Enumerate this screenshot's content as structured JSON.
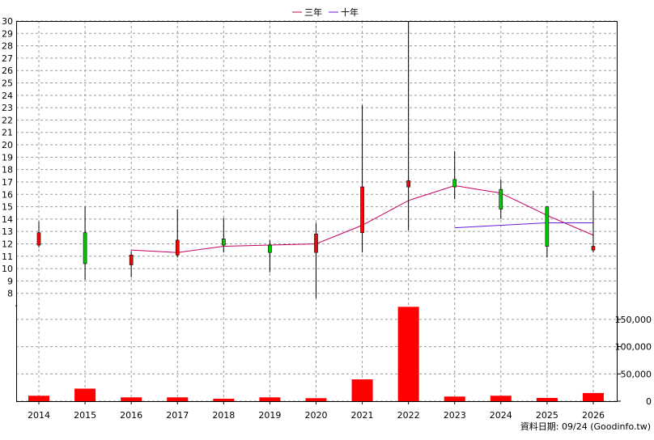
{
  "legend": {
    "items": [
      {
        "label": "三年",
        "color": "#c80064"
      },
      {
        "label": "十年",
        "color": "#6a1bd6"
      }
    ]
  },
  "footer": {
    "source_note": "資料日期: 09/24  (Goodinfo.tw)"
  },
  "chart_data": {
    "type": "candlestick+bar",
    "legend_position": "top-center",
    "grid": true,
    "years": [
      "2014",
      "2015",
      "2016",
      "2017",
      "2018",
      "2019",
      "2020",
      "2021",
      "2022",
      "2023",
      "2024",
      "2025",
      "2026"
    ],
    "price_axis": {
      "ylim": [
        7,
        30
      ],
      "ticks": [
        8,
        9,
        10,
        11,
        12,
        13,
        14,
        15,
        16,
        17,
        18,
        19,
        20,
        21,
        22,
        23,
        24,
        25,
        26,
        27,
        28,
        29,
        30
      ]
    },
    "candles": [
      {
        "open": 11.9,
        "close": 12.9,
        "high": 13.8,
        "low": 11.7
      },
      {
        "open": 12.9,
        "close": 10.4,
        "high": 15.0,
        "low": 9.1
      },
      {
        "open": 10.3,
        "close": 11.1,
        "high": 11.4,
        "low": 9.3
      },
      {
        "open": 11.1,
        "close": 12.3,
        "high": 14.8,
        "low": 10.9
      },
      {
        "open": 12.4,
        "close": 11.9,
        "high": 14.1,
        "low": 11.3
      },
      {
        "open": 11.9,
        "close": 11.3,
        "high": 12.3,
        "low": 9.7
      },
      {
        "open": 11.3,
        "close": 12.8,
        "high": 13.7,
        "low": 7.6
      },
      {
        "open": 12.9,
        "close": 16.6,
        "high": 23.2,
        "low": 11.3
      },
      {
        "open": 16.6,
        "close": 17.1,
        "high": 30.0,
        "low": 13.1
      },
      {
        "open": 17.2,
        "close": 16.6,
        "high": 19.5,
        "low": 15.6
      },
      {
        "open": 16.4,
        "close": 14.8,
        "high": 17.2,
        "low": 14.0
      },
      {
        "open": 15.0,
        "close": 11.8,
        "high": 15.0,
        "low": 10.9
      },
      {
        "open": 11.5,
        "close": 11.8,
        "high": 16.3,
        "low": 11.3
      }
    ],
    "series": [
      {
        "name": "三年",
        "color": "#c80064",
        "values": [
          null,
          null,
          11.5,
          11.3,
          11.8,
          11.9,
          12.0,
          13.5,
          15.5,
          16.7,
          16.1,
          14.3,
          12.7
        ]
      },
      {
        "name": "十年",
        "color": "#6a1bd6",
        "values": [
          null,
          null,
          null,
          null,
          null,
          null,
          null,
          null,
          null,
          13.3,
          13.5,
          13.7,
          13.7
        ]
      }
    ],
    "volume_axis": {
      "ylim": [
        0,
        175000
      ],
      "ticks": [
        0,
        50000,
        100000,
        150000
      ],
      "tick_labels": [
        "0",
        "50,000",
        "100,000",
        "150,000"
      ]
    },
    "volumes": [
      10000,
      23000,
      7000,
      7000,
      4500,
      7000,
      5500,
      40000,
      173000,
      8500,
      10000,
      6000,
      15000
    ],
    "colors": {
      "up": "#ff0000",
      "down": "#00cc00",
      "wick": "#000000",
      "volume": "#ff0000",
      "grid": "#9a9a9a"
    }
  }
}
